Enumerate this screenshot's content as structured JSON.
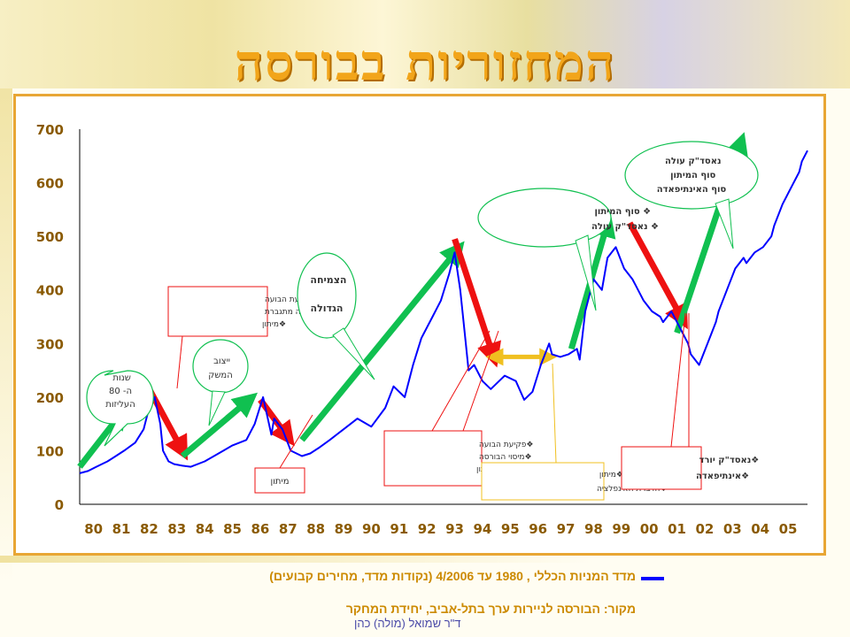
{
  "slide": {
    "title": "המחזוריות בבורסה",
    "legend_label": "מדד המניות הכללי , 1980 עד 4/2006 (נקודות מדד, מחירים קבועים)",
    "source": "מקור: הבורסה לניירות ערך בתל-אביב, יחידת המחקר",
    "author": "ד\"ר שמואל (מולה) כהן"
  },
  "colors": {
    "title": "#f2a51a",
    "line": "#0000ff",
    "rise_arrow": "#10c050",
    "fall_arrow": "#ee1111",
    "flat_arrow": "#f0c020",
    "frame": "#e8a634"
  },
  "chart_data": {
    "type": "line",
    "title": "",
    "xlabel": "",
    "ylabel": "",
    "ylim": [
      0,
      700
    ],
    "yticks": [
      "0",
      "100",
      "200",
      "300",
      "400",
      "500",
      "600",
      "700"
    ],
    "categories": [
      "80",
      "81",
      "82",
      "83",
      "84",
      "85",
      "86",
      "87",
      "88",
      "89",
      "90",
      "91",
      "92",
      "93",
      "94",
      "95",
      "96",
      "97",
      "98",
      "99",
      "00",
      "01",
      "02",
      "03",
      "04",
      "05"
    ],
    "series": [
      {
        "name": "",
        "x": [
          1980.0,
          1980.3,
          1980.6,
          1981.0,
          1981.3,
          1981.6,
          1982.0,
          1982.3,
          1982.5,
          1982.7,
          1982.9,
          1983.0,
          1983.2,
          1983.4,
          1983.7,
          1984.0,
          1984.5,
          1985.0,
          1985.5,
          1986.0,
          1986.3,
          1986.6,
          1986.9,
          1987.0,
          1987.3,
          1987.6,
          1988.0,
          1988.3,
          1988.6,
          1989.0,
          1989.5,
          1990.0,
          1990.5,
          1991.0,
          1991.3,
          1991.7,
          1992.0,
          1992.3,
          1992.7,
          1993.0,
          1993.3,
          1993.5,
          1993.7,
          1993.9,
          1994.0,
          1994.2,
          1994.5,
          1994.8,
          1995.0,
          1995.3,
          1995.7,
          1996.0,
          1996.3,
          1996.6,
          1996.9,
          1997.0,
          1997.3,
          1997.6,
          1997.9,
          1998.0,
          1998.2,
          1998.5,
          1998.8,
          1999.0,
          1999.3,
          1999.6,
          1999.9,
          2000.0,
          2000.3,
          2000.6,
          2000.9,
          2001.0,
          2001.3,
          2001.6,
          2001.9,
          2002.0,
          2002.3,
          2002.6,
          2002.9,
          2003.0,
          2003.3,
          2003.6,
          2003.9,
          2004.0,
          2004.3,
          2004.6,
          2004.9,
          2005.0,
          2005.3,
          2005.6,
          2005.9,
          2006.0,
          2006.2
        ],
        "values": [
          58,
          62,
          70,
          80,
          90,
          100,
          115,
          140,
          180,
          200,
          150,
          100,
          80,
          75,
          72,
          70,
          80,
          95,
          110,
          120,
          150,
          200,
          130,
          160,
          140,
          100,
          90,
          95,
          105,
          120,
          140,
          160,
          145,
          180,
          220,
          200,
          260,
          310,
          350,
          380,
          430,
          470,
          400,
          300,
          250,
          260,
          230,
          215,
          225,
          240,
          230,
          195,
          210,
          260,
          300,
          280,
          275,
          280,
          290,
          270,
          360,
          420,
          400,
          460,
          480,
          440,
          420,
          410,
          380,
          360,
          350,
          340,
          360,
          330,
          300,
          280,
          260,
          300,
          340,
          360,
          400,
          440,
          460,
          450,
          470,
          480,
          500,
          520,
          560,
          590,
          620,
          640,
          660
        ]
      }
    ],
    "trend_arrows": [
      {
        "kind": "rise",
        "from_year": 1980.0,
        "from_value": 70,
        "to_year": 1981.5,
        "to_value": 170
      },
      {
        "kind": "fall",
        "from_year": 1982.4,
        "from_value": 225,
        "to_year": 1983.7,
        "to_value": 100
      },
      {
        "kind": "rise",
        "from_year": 1983.7,
        "from_value": 90,
        "to_year": 1986.1,
        "to_value": 195
      },
      {
        "kind": "fall",
        "from_year": 1986.5,
        "from_value": 195,
        "to_year": 1987.5,
        "to_value": 125
      },
      {
        "kind": "rise",
        "from_year": 1988.0,
        "from_value": 120,
        "to_year": 1993.6,
        "to_value": 475
      },
      {
        "kind": "fall",
        "from_year": 1993.5,
        "from_value": 495,
        "to_year": 1994.9,
        "to_value": 275
      },
      {
        "kind": "flat",
        "from_year": 1994.9,
        "from_value": 275,
        "to_year": 1996.9,
        "to_value": 275
      },
      {
        "kind": "rise",
        "from_year": 1997.7,
        "from_value": 290,
        "to_year": 1999.0,
        "to_value": 525
      },
      {
        "kind": "fall",
        "from_year": 1999.8,
        "from_value": 525,
        "to_year": 2001.7,
        "to_value": 345
      },
      {
        "kind": "rise",
        "from_year": 2001.5,
        "from_value": 320,
        "to_year": 2003.8,
        "to_value": 675
      }
    ],
    "annotations": {
      "years80": "שנות ה- 80 העליזות",
      "bubble1": [
        "פקיעת הבועה",
        "אינפלציה מתגברת",
        "מיתון"
      ],
      "stabilization": "ייצוב המשק",
      "recession": "מיתון",
      "big_growth": "הצמיחה הגדולה",
      "bubble2": [
        "פקיעת הבועה",
        "מיסוי הבורסה",
        "תחילת מיתון"
      ],
      "recession_disinflation": [
        "מיתון",
        "הדברת האינפלציה"
      ],
      "end_recession1": [
        "סוף המיתון",
        "נאסד\"ק עולה"
      ],
      "nasdaq_falls": [
        "נאסד\"ק יורד",
        "אינתיפאדה"
      ],
      "nasdaq_rises": [
        "נאסד\"ק עולה",
        "סוף המיתון",
        "סוף האינתיפאדה"
      ]
    }
  }
}
